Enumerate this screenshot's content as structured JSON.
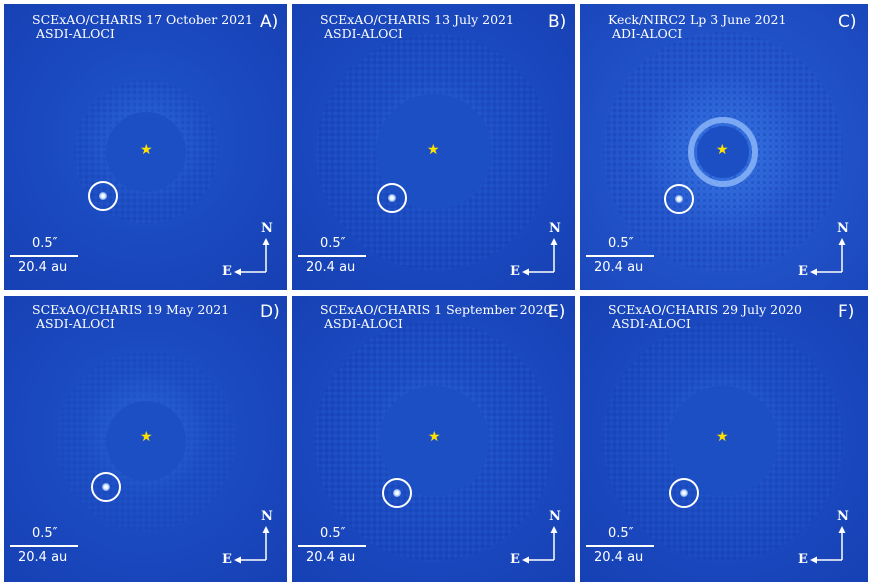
{
  "panels": [
    {
      "id": "A",
      "letter": "A)",
      "title1": "SCExAO/CHARIS 17 October 2021",
      "title2": "ASDI-ALOCI",
      "scale_arcsec": "0.5″",
      "scale_au": "20.4 au",
      "north": "N",
      "east": "E"
    },
    {
      "id": "B",
      "letter": "B)",
      "title1": "SCExAO/CHARIS 13 July 2021",
      "title2": "ASDI-ALOCI",
      "scale_arcsec": "0.5″",
      "scale_au": "20.4 au",
      "north": "N",
      "east": "E"
    },
    {
      "id": "C",
      "letter": "C)",
      "title1": "Keck/NIRC2 Lp 3 June 2021",
      "title2": "ADI-ALOCI",
      "scale_arcsec": "0.5″",
      "scale_au": "20.4 au",
      "north": "N",
      "east": "E"
    },
    {
      "id": "D",
      "letter": "D)",
      "title1": "SCExAO/CHARIS 19 May 2021",
      "title2": "ASDI-ALOCI",
      "scale_arcsec": "0.5″",
      "scale_au": "20.4 au",
      "north": "N",
      "east": "E"
    },
    {
      "id": "E",
      "letter": "E)",
      "title1": "SCExAO/CHARIS 1 September 2020",
      "title2": "ASDI-ALOCI",
      "scale_arcsec": "0.5″",
      "scale_au": "20.4 au",
      "north": "N",
      "east": "E"
    },
    {
      "id": "F",
      "letter": "F)",
      "title1": "SCExAO/CHARIS 29 July 2020",
      "title2": "ASDI-ALOCI",
      "scale_arcsec": "0.5″",
      "scale_au": "20.4 au",
      "north": "N",
      "east": "E"
    }
  ],
  "colors": {
    "background": "#1a48be",
    "mask": "#1d4fc4",
    "star": "#ffe100",
    "text": "#ffffff"
  },
  "icons": {
    "star": "yellow-star-icon",
    "companion": "circled-companion-icon",
    "compass": "north-east-compass-icon"
  }
}
